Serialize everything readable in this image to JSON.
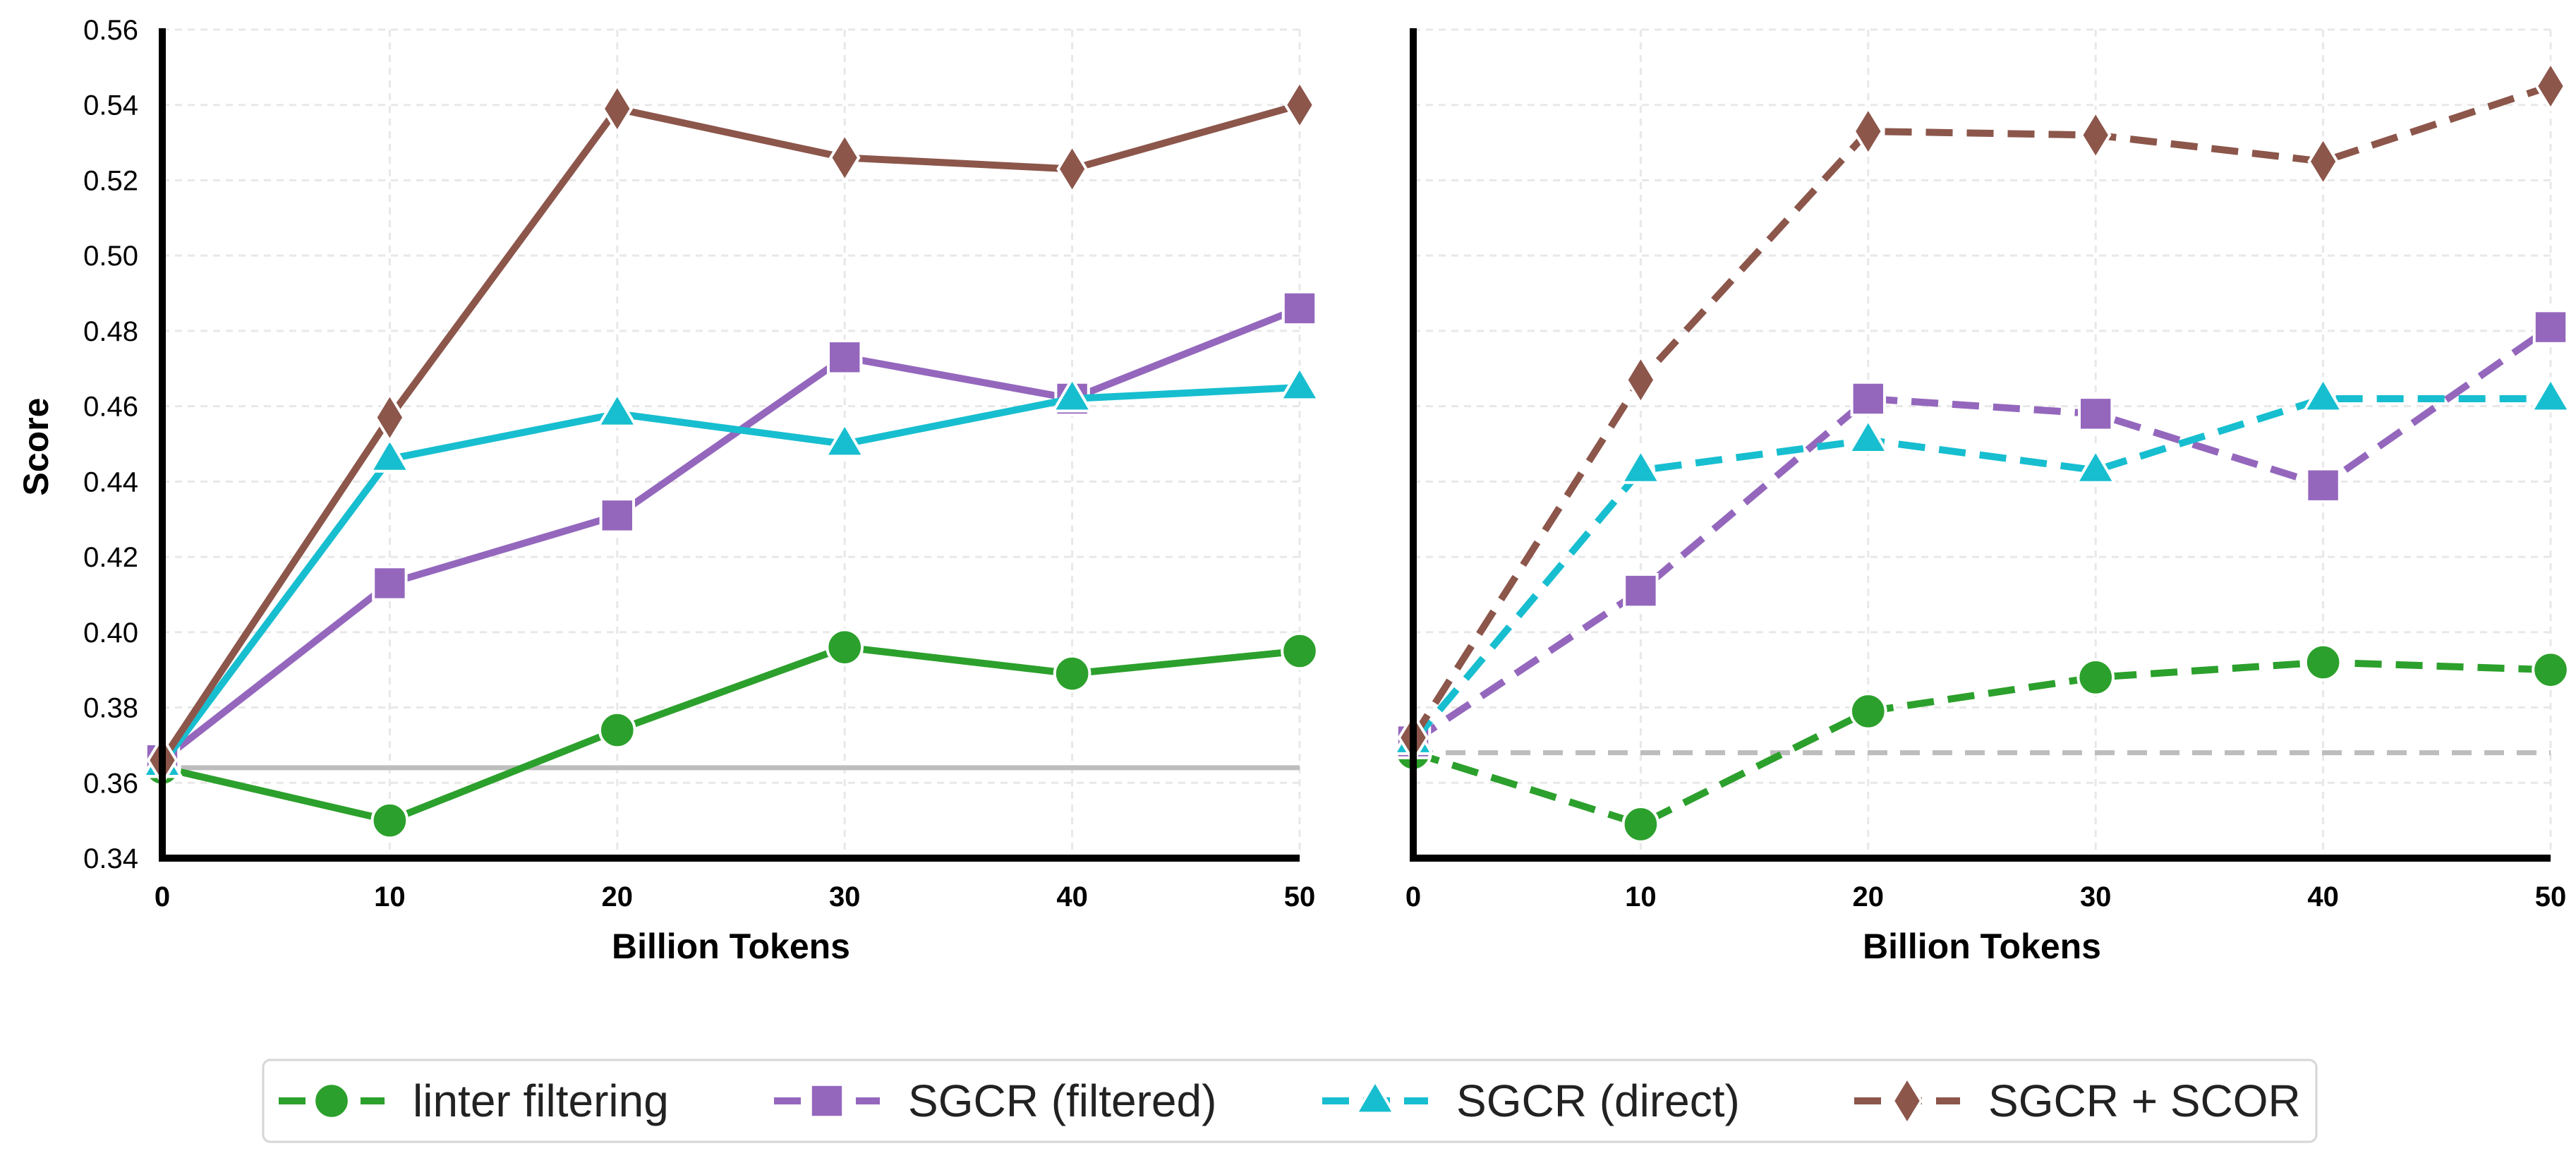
{
  "chart_data": [
    {
      "type": "line",
      "panel": "left",
      "xlabel": "Billion Tokens",
      "ylabel": "Score",
      "xlim": [
        0,
        50
      ],
      "ylim": [
        0.34,
        0.56
      ],
      "x_ticks": [
        "0",
        "10",
        "20",
        "30",
        "40",
        "50"
      ],
      "y_ticks": [
        "0.34",
        "0.36",
        "0.38",
        "0.40",
        "0.42",
        "0.44",
        "0.46",
        "0.48",
        "0.50",
        "0.52",
        "0.54",
        "0.56"
      ],
      "grid": true,
      "line_style": "solid",
      "x": [
        0,
        10,
        20,
        30,
        40,
        50
      ],
      "baseline": 0.364,
      "series": [
        {
          "name": "linter filtering",
          "values": [
            0.364,
            0.35,
            0.374,
            0.396,
            0.389,
            0.395
          ]
        },
        {
          "name": "SGCR (filtered)",
          "values": [
            0.366,
            0.413,
            0.431,
            0.473,
            0.462,
            0.486
          ]
        },
        {
          "name": "SGCR (direct)",
          "values": [
            0.365,
            0.446,
            0.458,
            0.45,
            0.462,
            0.465
          ]
        },
        {
          "name": "SGCR + SCOR",
          "values": [
            0.366,
            0.457,
            0.539,
            0.526,
            0.523,
            0.54
          ]
        }
      ]
    },
    {
      "type": "line",
      "panel": "right",
      "xlabel": "Billion Tokens",
      "ylabel": "",
      "xlim": [
        0,
        50
      ],
      "ylim": [
        0.34,
        0.56
      ],
      "x_ticks": [
        "0",
        "10",
        "20",
        "30",
        "40",
        "50"
      ],
      "grid": true,
      "line_style": "dashed",
      "x": [
        0,
        10,
        20,
        30,
        40,
        50
      ],
      "baseline": 0.368,
      "series": [
        {
          "name": "linter filtering",
          "values": [
            0.368,
            0.349,
            0.379,
            0.388,
            0.392,
            0.39
          ]
        },
        {
          "name": "SGCR (filtered)",
          "values": [
            0.371,
            0.411,
            0.462,
            0.458,
            0.439,
            0.481
          ]
        },
        {
          "name": "SGCR (direct)",
          "values": [
            0.371,
            0.443,
            0.451,
            0.443,
            0.462,
            0.462
          ]
        },
        {
          "name": "SGCR + SCOR",
          "values": [
            0.372,
            0.467,
            0.533,
            0.532,
            0.525,
            0.545
          ]
        }
      ]
    }
  ],
  "legend": {
    "placement": "bottom-center",
    "entries": [
      {
        "label": "linter filtering",
        "color": "#2ca02c",
        "marker": "circle"
      },
      {
        "label": "SGCR (filtered)",
        "color": "#9467bd",
        "marker": "square"
      },
      {
        "label": "SGCR (direct)",
        "color": "#17becf",
        "marker": "triangle"
      },
      {
        "label": "SGCR + SCOR",
        "color": "#8c564b",
        "marker": "diamond"
      }
    ]
  },
  "colors": {
    "baseline": "#bdbdbd",
    "grid": "#e8e8e8",
    "axis": "#000000"
  }
}
